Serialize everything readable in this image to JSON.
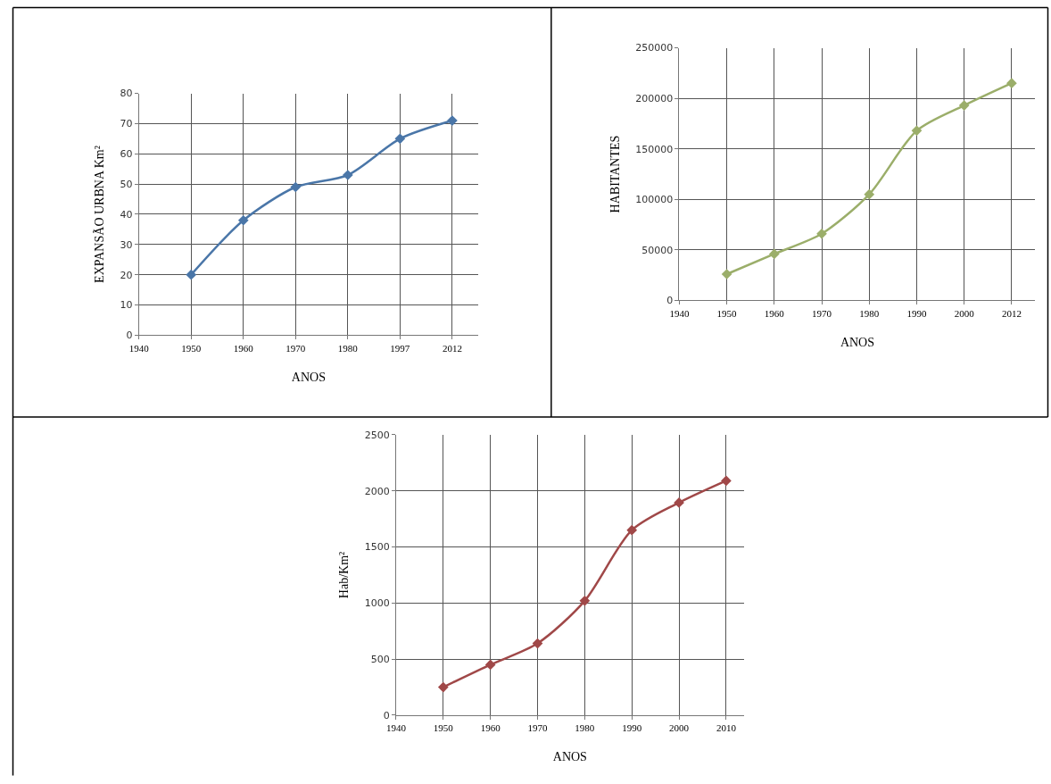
{
  "chart_data": [
    {
      "type": "line",
      "xlabel": "ANOS",
      "ylabel": "EXPANSÃO URBNA Km²",
      "categories": [
        "1940",
        "1950",
        "1960",
        "1970",
        "1980",
        "1997",
        "2012"
      ],
      "series": [
        {
          "color": "#4a76a8",
          "values": [
            null,
            20,
            38,
            49,
            53,
            65,
            71
          ]
        }
      ],
      "ylim": [
        0,
        80
      ],
      "yticks": [
        0,
        10,
        20,
        30,
        40,
        50,
        60,
        70,
        80
      ],
      "grid": true,
      "marker": "diamond",
      "line_style": "solid"
    },
    {
      "type": "line",
      "xlabel": "ANOS",
      "ylabel": "HABITANTES",
      "categories": [
        "1940",
        "1950",
        "1960",
        "1970",
        "1980",
        "1990",
        "2000",
        "2012"
      ],
      "series": [
        {
          "color": "#9bae6a",
          "values": [
            null,
            26000,
            46000,
            66000,
            105000,
            168000,
            193000,
            215000
          ]
        }
      ],
      "ylim": [
        0,
        250000
      ],
      "yticks": [
        0,
        50000,
        100000,
        150000,
        200000,
        250000
      ],
      "grid": true,
      "marker": "diamond",
      "line_style": "solid"
    },
    {
      "type": "line",
      "xlabel": "ANOS",
      "ylabel": "Hab/Km²",
      "x": [
        1950,
        1960,
        1970,
        1980,
        1990,
        2000,
        2010
      ],
      "series": [
        {
          "color": "#a04848",
          "values": [
            250,
            450,
            640,
            1020,
            1650,
            1895,
            2090
          ]
        }
      ],
      "xlim": [
        1940,
        2013.75
      ],
      "xticks": [
        1940,
        1950,
        1960,
        1970,
        1980,
        1990,
        2000,
        2010
      ],
      "ylim": [
        0,
        2500
      ],
      "yticks": [
        0,
        500,
        1000,
        1500,
        2000,
        2500
      ],
      "grid": true,
      "marker": "diamond",
      "line_style": "solid"
    }
  ]
}
